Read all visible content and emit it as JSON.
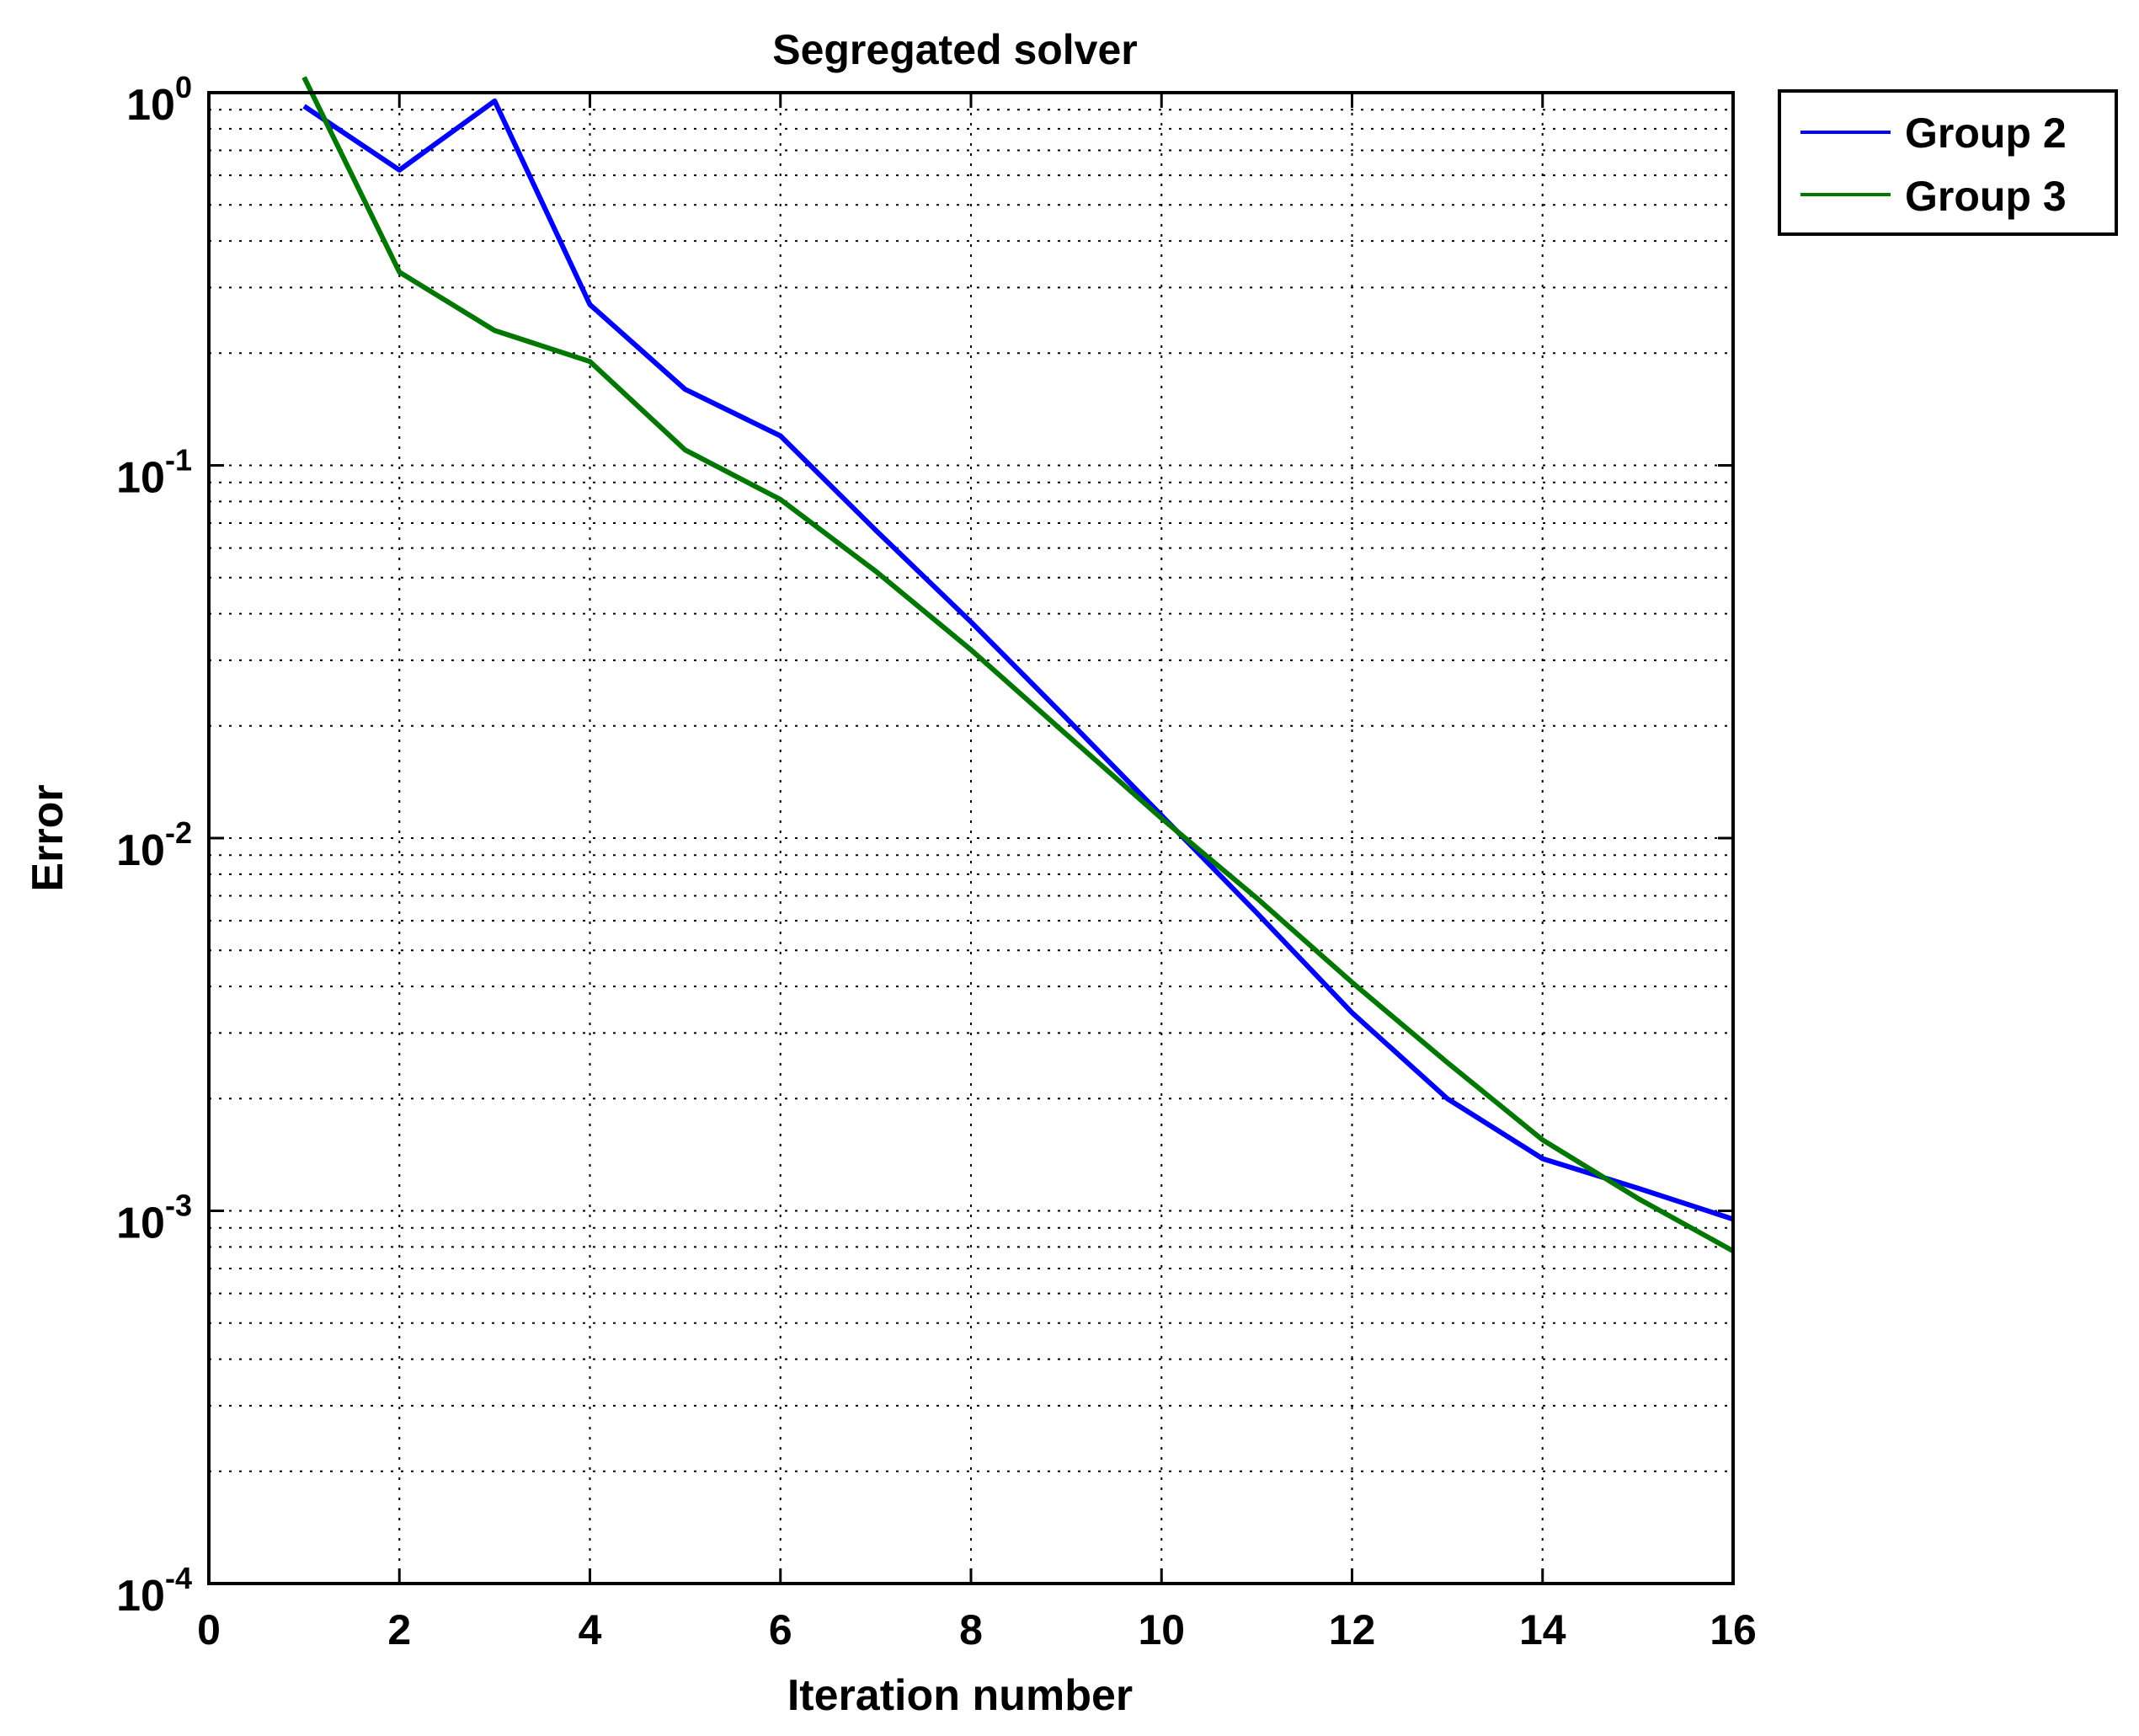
{
  "chart_data": {
    "type": "line",
    "title": "Segregated solver",
    "xlabel": "Iteration number",
    "ylabel": "Error",
    "xlim": [
      0,
      16
    ],
    "ylim": [
      0.0001,
      1
    ],
    "yscale": "log",
    "xticks": [
      0,
      2,
      4,
      6,
      8,
      10,
      12,
      14,
      16
    ],
    "yticks": [
      {
        "value": 1,
        "base": "10",
        "exp": "0"
      },
      {
        "value": 0.1,
        "base": "10",
        "exp": "-1"
      },
      {
        "value": 0.01,
        "base": "10",
        "exp": "-2"
      },
      {
        "value": 0.001,
        "base": "10",
        "exp": "-3"
      },
      {
        "value": 0.0001,
        "base": "10",
        "exp": "-4"
      }
    ],
    "grid": true,
    "legend_position": "outside-top-right",
    "series": [
      {
        "name": "Group 2",
        "color": "#0000ff",
        "x": [
          1,
          2,
          3,
          4,
          5,
          6,
          7,
          8,
          9,
          10,
          11,
          12,
          13,
          14,
          15,
          16
        ],
        "y": [
          0.92,
          0.62,
          0.95,
          0.27,
          0.16,
          0.12,
          0.067,
          0.038,
          0.021,
          0.0115,
          0.0063,
          0.0034,
          0.002,
          0.00138,
          0.00115,
          0.00095
        ]
      },
      {
        "name": "Group 3",
        "color": "#007700",
        "x": [
          1,
          2,
          3,
          4,
          5,
          6,
          7,
          8,
          9,
          10,
          11,
          12,
          13,
          14,
          15,
          16
        ],
        "y": [
          1.1,
          0.33,
          0.23,
          0.19,
          0.11,
          0.081,
          0.052,
          0.032,
          0.019,
          0.0113,
          0.0069,
          0.0041,
          0.0025,
          0.00155,
          0.00108,
          0.00078
        ]
      }
    ]
  }
}
